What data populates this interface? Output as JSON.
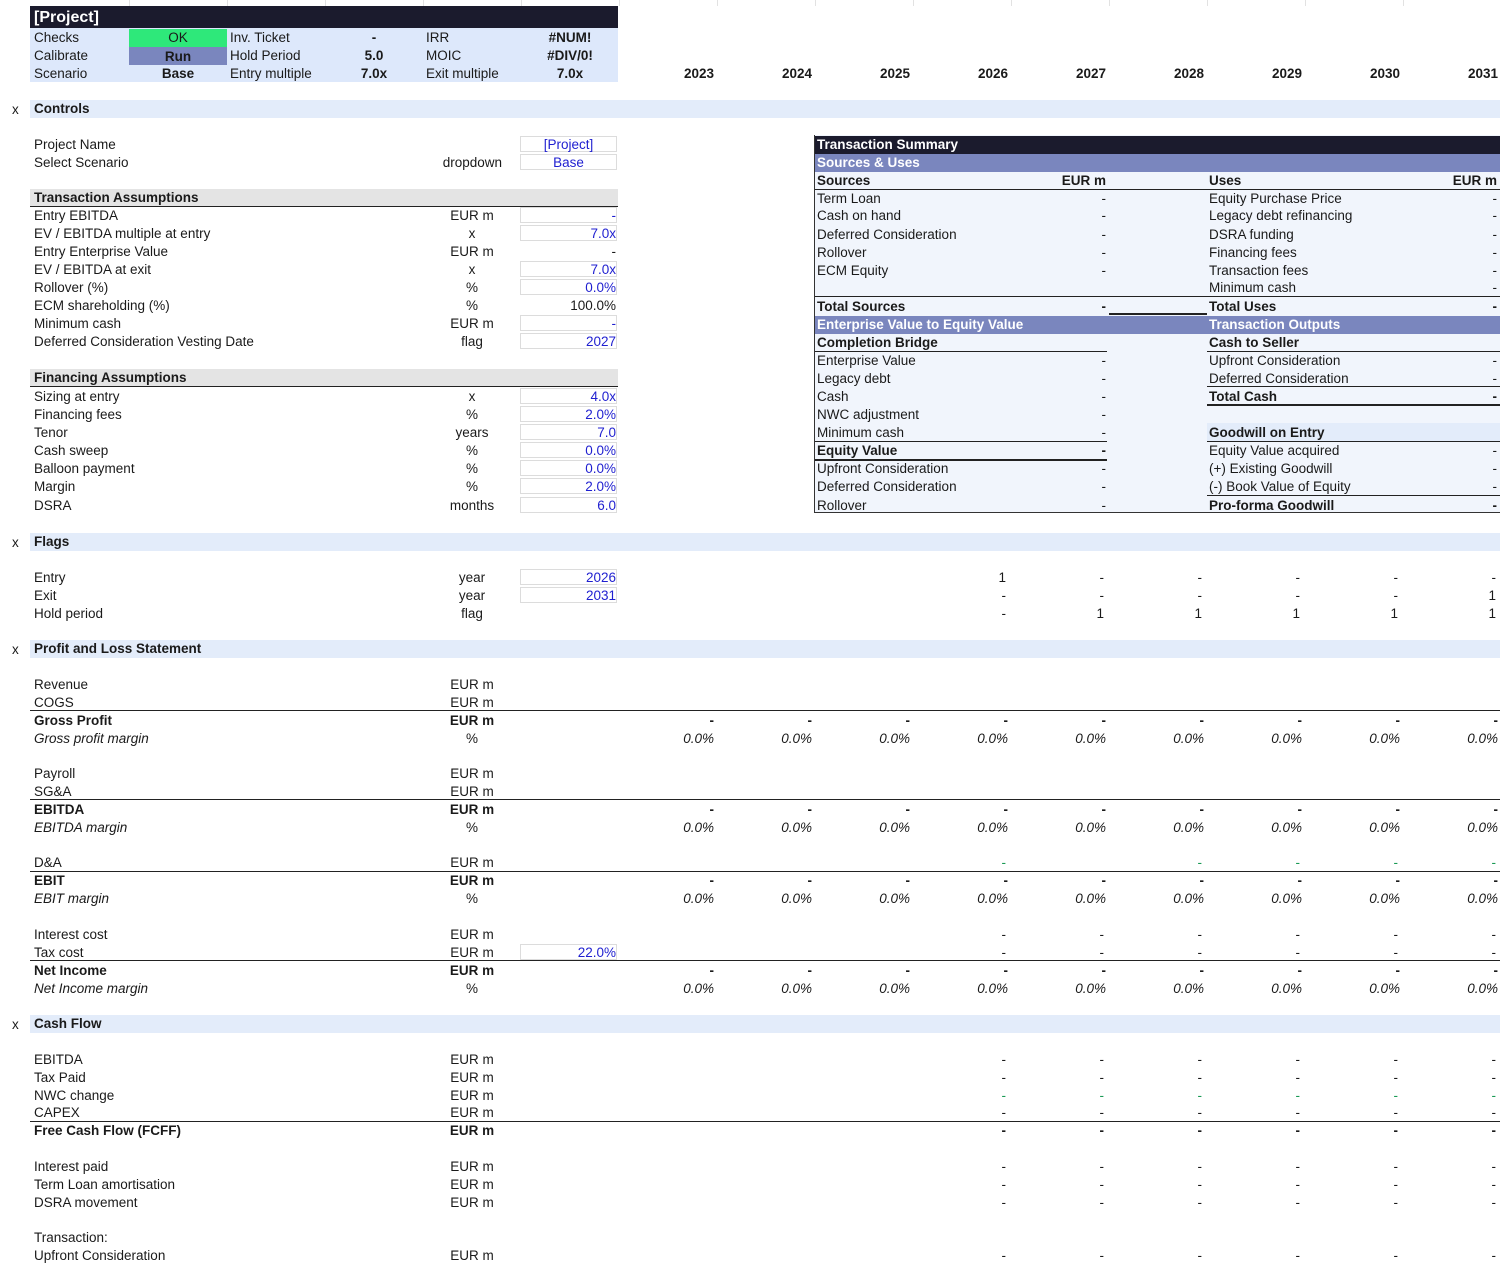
{
  "header": {
    "title": "[Project]",
    "checks_label": "Checks",
    "checks_value": "OK",
    "calibrate_label": "Calibrate",
    "calibrate_value": "Run",
    "scenario_label": "Scenario",
    "scenario_value": "Base",
    "inv_ticket_label": "Inv. Ticket",
    "inv_ticket_value": "-",
    "hold_period_label": "Hold Period",
    "hold_period_value": "5.0",
    "entry_multiple_label": "Entry multiple",
    "entry_multiple_value": "7.0x",
    "irr_label": "IRR",
    "irr_value": "#NUM!",
    "moic_label": "MOIC",
    "moic_value": "#DIV/0!",
    "exit_multiple_label": "Exit multiple",
    "exit_multiple_value": "7.0x",
    "years": [
      "2023",
      "2024",
      "2025",
      "2026",
      "2027",
      "2028",
      "2029",
      "2030",
      "2031"
    ],
    "colors": {
      "title_bg": "#1b1b2d",
      "ok_bg": "#2ee87a",
      "run_bg": "#7a86be",
      "panel_bg": "#dde8fb"
    }
  },
  "controls": {
    "section": "Controls",
    "collapse": "x",
    "project_name_label": "Project Name",
    "project_name_value": "[Project]",
    "select_scenario_label": "Select Scenario",
    "select_scenario_unit": "dropdown",
    "select_scenario_value": "Base"
  },
  "transaction_assumptions": {
    "title": "Transaction Assumptions",
    "rows": [
      {
        "label": "Entry EBITDA",
        "unit": "EUR m",
        "value": "-"
      },
      {
        "label": "EV / EBITDA multiple at entry",
        "unit": "x",
        "value": "7.0x"
      },
      {
        "label": "Entry Enterprise Value",
        "unit": "EUR m",
        "value": "-"
      },
      {
        "label": "EV / EBITDA at exit",
        "unit": "x",
        "value": "7.0x"
      },
      {
        "label": "Rollover (%)",
        "unit": "%",
        "value": "0.0%"
      },
      {
        "label": "ECM shareholding (%)",
        "unit": "%",
        "value": "100.0%"
      },
      {
        "label": "Minimum cash",
        "unit": "EUR m",
        "value": "-"
      },
      {
        "label": "Deferred Consideration Vesting Date",
        "unit": "flag",
        "value": "2027"
      }
    ]
  },
  "financing_assumptions": {
    "title": "Financing Assumptions",
    "rows": [
      {
        "label": "Sizing at entry",
        "unit": "x",
        "value": "4.0x"
      },
      {
        "label": "Financing fees",
        "unit": "%",
        "value": "2.0%"
      },
      {
        "label": "Tenor",
        "unit": "years",
        "value": "7.0"
      },
      {
        "label": "Cash sweep",
        "unit": "%",
        "value": "0.0%"
      },
      {
        "label": "Balloon payment",
        "unit": "%",
        "value": "0.0%"
      },
      {
        "label": "Margin",
        "unit": "%",
        "value": "2.0%"
      },
      {
        "label": "DSRA",
        "unit": "months",
        "value": "6.0"
      }
    ]
  },
  "transaction_summary": {
    "title": "Transaction Summary",
    "sources_uses_title": "Sources & Uses",
    "sources_header": "Sources",
    "sources_unit": "EUR m",
    "uses_header": "Uses",
    "uses_unit": "EUR m",
    "sources": [
      {
        "label": "Term Loan",
        "value": "-"
      },
      {
        "label": "Cash on hand",
        "value": "-"
      },
      {
        "label": "Deferred Consideration",
        "value": "-"
      },
      {
        "label": "Rollover",
        "value": "-"
      },
      {
        "label": "ECM Equity",
        "value": "-"
      }
    ],
    "uses": [
      {
        "label": "Equity Purchase Price",
        "value": "-"
      },
      {
        "label": "Legacy debt refinancing",
        "value": "-"
      },
      {
        "label": "DSRA funding",
        "value": "-"
      },
      {
        "label": "Financing fees",
        "value": "-"
      },
      {
        "label": "Transaction fees",
        "value": "-"
      },
      {
        "label": "Minimum cash",
        "value": "-"
      }
    ],
    "total_sources_label": "Total Sources",
    "total_sources_value": "-",
    "total_uses_label": "Total Uses",
    "total_uses_value": "-",
    "ev_to_equity_title": "Enterprise Value to Equity Value",
    "transaction_outputs_title": "Transaction Outputs",
    "completion_bridge_title": "Completion Bridge",
    "bridge": [
      {
        "label": "Enterprise Value",
        "value": "-"
      },
      {
        "label": "Legacy debt",
        "value": "-"
      },
      {
        "label": "Cash",
        "value": "-"
      },
      {
        "label": "NWC adjustment",
        "value": "-"
      },
      {
        "label": "Minimum cash",
        "value": "-"
      }
    ],
    "equity_value_label": "Equity Value",
    "equity_value_value": "-",
    "post_equity": [
      {
        "label": "Upfront Consideration",
        "value": "-"
      },
      {
        "label": "Deferred Consideration",
        "value": "-"
      },
      {
        "label": "Rollover",
        "value": "-"
      }
    ],
    "cash_to_seller_title": "Cash to Seller",
    "cash_to_seller": [
      {
        "label": "Upfront Consideration",
        "value": "-"
      },
      {
        "label": "Deferred Consideration",
        "value": "-"
      }
    ],
    "total_cash_label": "Total Cash",
    "total_cash_value": "-",
    "goodwill_title": "Goodwill on Entry",
    "goodwill": [
      {
        "label": "Equity Value acquired",
        "value": "-"
      },
      {
        "label": "(+) Existing Goodwill",
        "value": "-"
      },
      {
        "label": "(-) Book Value of Equity",
        "value": "-"
      }
    ],
    "proforma_goodwill_label": "Pro-forma Goodwill",
    "proforma_goodwill_value": "-"
  },
  "flags": {
    "section": "Flags",
    "collapse": "x",
    "entry_label": "Entry",
    "entry_unit": "year",
    "entry_value": "2026",
    "entry_row": [
      "1",
      "-",
      "-",
      "-",
      "-",
      "-"
    ],
    "exit_label": "Exit",
    "exit_unit": "year",
    "exit_value": "2031",
    "exit_row": [
      "-",
      "-",
      "-",
      "-",
      "-",
      "1"
    ],
    "hold_label": "Hold period",
    "hold_unit": "flag",
    "hold_row": [
      "-",
      "1",
      "1",
      "1",
      "1",
      "1"
    ]
  },
  "pnl": {
    "section": "Profit and Loss Statement",
    "collapse": "x",
    "revenue_label": "Revenue",
    "revenue_unit": "EUR m",
    "cogs_label": "COGS",
    "cogs_unit": "EUR m",
    "gross_profit_label": "Gross Profit",
    "gross_profit_unit": "EUR m",
    "gross_margin_label": "Gross profit margin",
    "gross_margin_unit": "%",
    "payroll_label": "Payroll",
    "payroll_unit": "EUR m",
    "sga_label": "SG&A",
    "sga_unit": "EUR m",
    "ebitda_label": "EBITDA",
    "ebitda_unit": "EUR m",
    "ebitda_margin_label": "EBITDA margin",
    "ebitda_margin_unit": "%",
    "da_label": "D&A",
    "da_unit": "EUR m",
    "ebit_label": "EBIT",
    "ebit_unit": "EUR m",
    "ebit_margin_label": "EBIT margin",
    "ebit_margin_unit": "%",
    "interest_label": "Interest cost",
    "interest_unit": "EUR m",
    "tax_label": "Tax cost",
    "tax_unit": "EUR m",
    "tax_rate": "22.0%",
    "net_income_label": "Net Income",
    "net_income_unit": "EUR m",
    "net_margin_label": "Net Income margin",
    "net_margin_unit": "%",
    "dash": "-",
    "zero_pct": "0.0%"
  },
  "cashflow": {
    "section": "Cash Flow",
    "collapse": "x",
    "rows": [
      {
        "label": "EBITDA",
        "unit": "EUR m"
      },
      {
        "label": "Tax Paid",
        "unit": "EUR m"
      },
      {
        "label": "NWC change",
        "unit": "EUR m"
      },
      {
        "label": "CAPEX",
        "unit": "EUR m"
      }
    ],
    "fcff_label": "Free Cash Flow (FCFF)",
    "fcff_unit": "EUR m",
    "rows2": [
      {
        "label": "Interest paid",
        "unit": "EUR m"
      },
      {
        "label": "Term Loan amortisation",
        "unit": "EUR m"
      },
      {
        "label": "DSRA movement",
        "unit": "EUR m"
      }
    ],
    "transaction_label": "Transaction:",
    "upfront_label": "Upfront Consideration",
    "upfront_unit": "EUR m",
    "dash": "-"
  }
}
